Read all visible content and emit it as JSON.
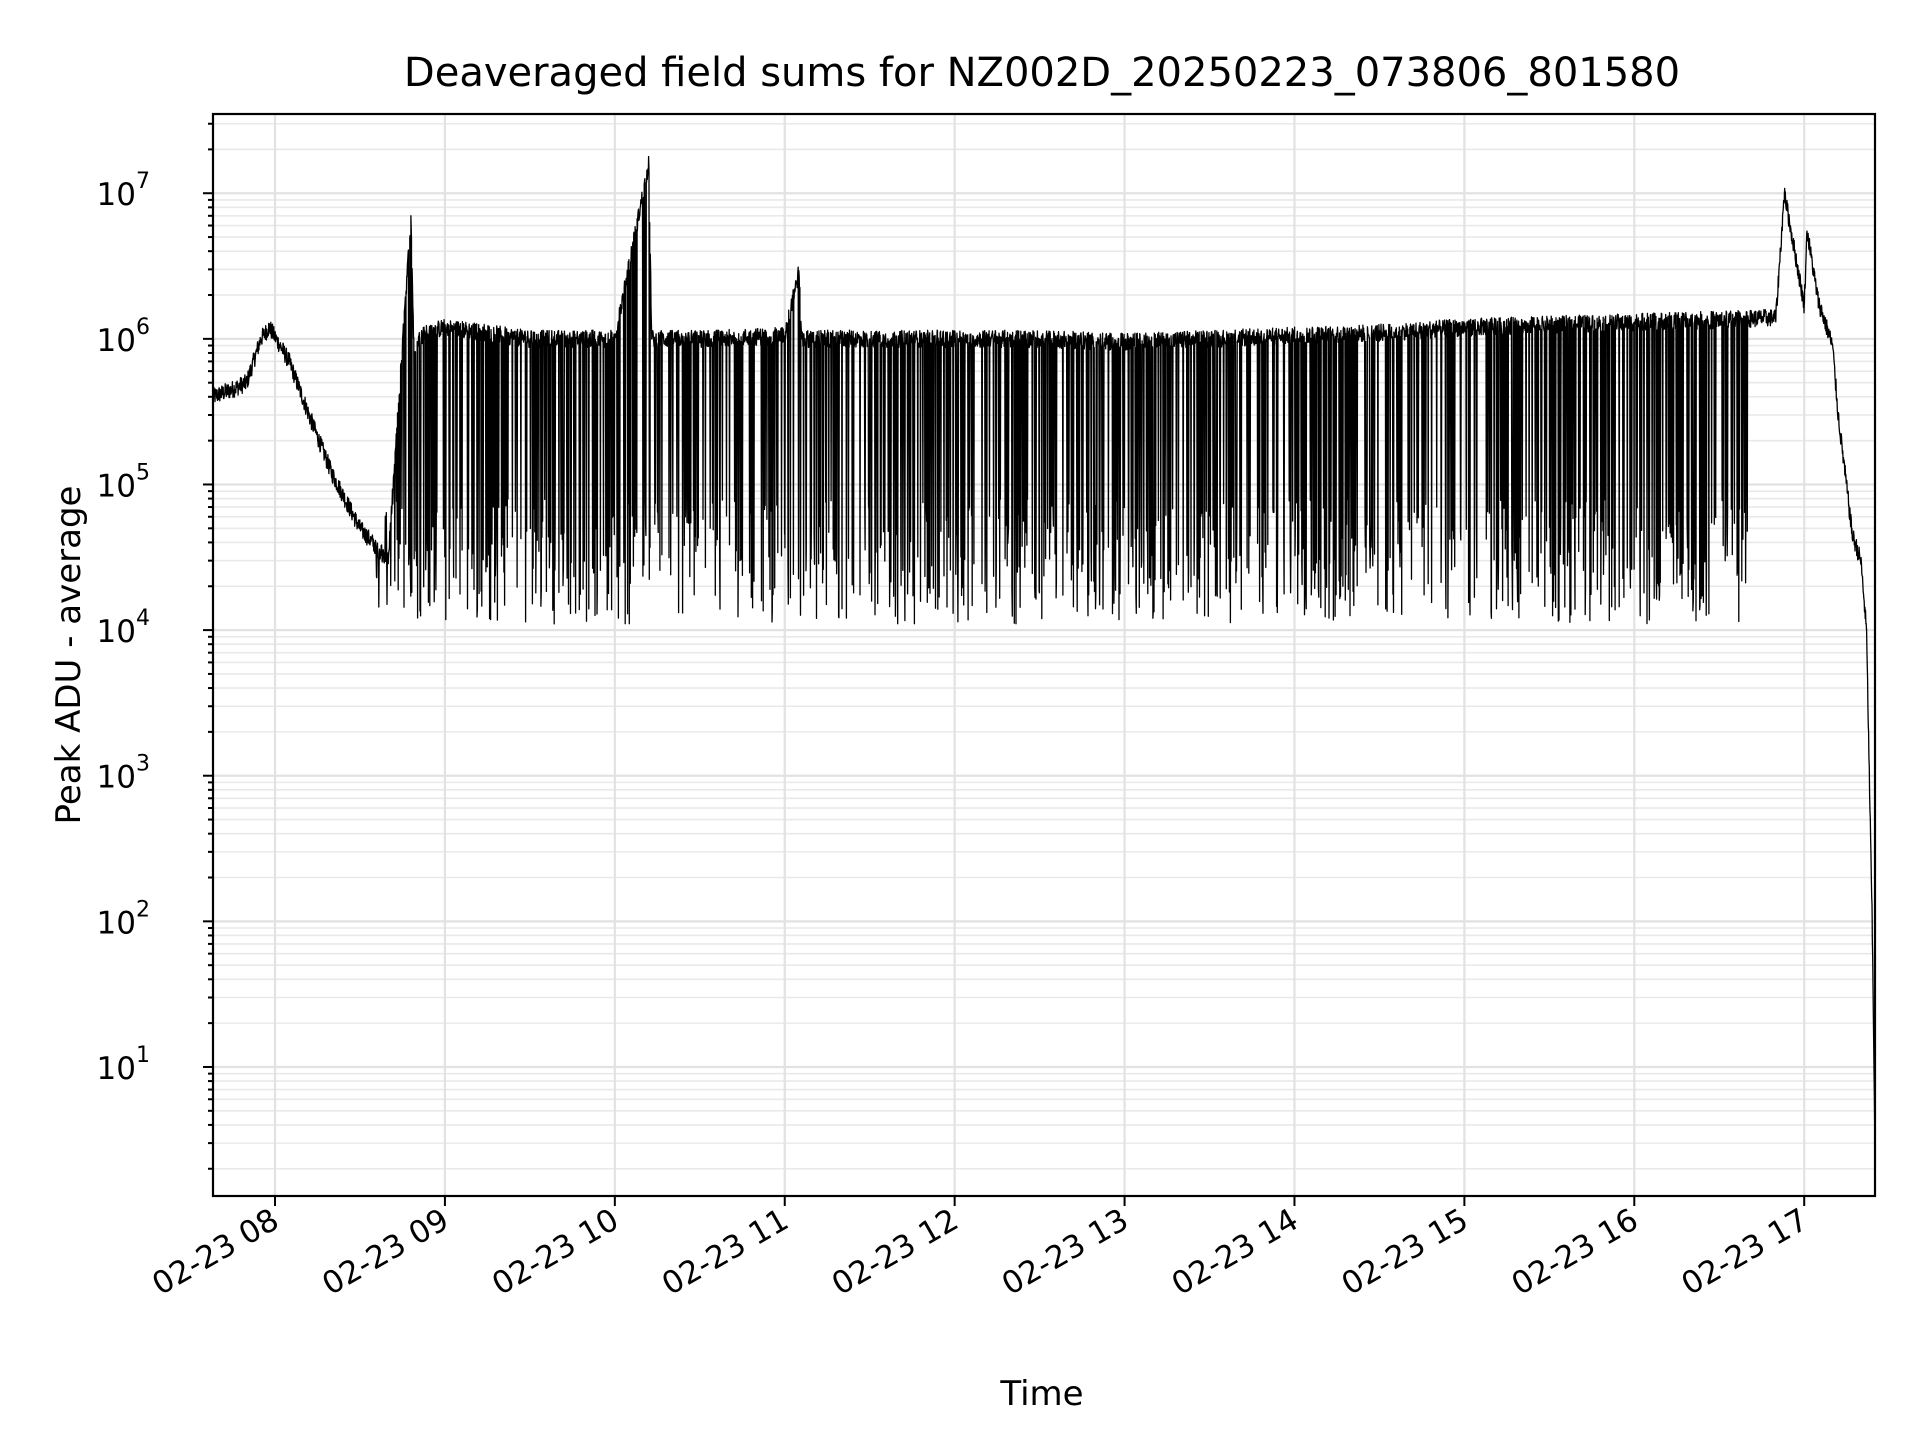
{
  "chart_data": {
    "type": "line",
    "title": "Deaveraged field sums for NZ002D_20250223_073806_801580",
    "xlabel": "Time",
    "ylabel": "Peak ADU - average",
    "yscale": "log",
    "ylim": [
      1.3,
      35000000
    ],
    "xlim": [
      "2025-02-23 07:38:06",
      "2025-02-23 17:25:00"
    ],
    "grid": true,
    "legend": "none",
    "x_ticks": [
      "02-23 08",
      "02-23 09",
      "02-23 10",
      "02-23 11",
      "02-23 12",
      "02-23 13",
      "02-23 14",
      "02-23 15",
      "02-23 16",
      "02-23 17"
    ],
    "x_tick_times": [
      "2025-02-23 08:00",
      "2025-02-23 09:00",
      "2025-02-23 10:00",
      "2025-02-23 11:00",
      "2025-02-23 12:00",
      "2025-02-23 13:00",
      "2025-02-23 14:00",
      "2025-02-23 15:00",
      "2025-02-23 16:00",
      "2025-02-23 17:00"
    ],
    "y_ticks": [
      {
        "base": "10",
        "exp": "1",
        "value": 10
      },
      {
        "base": "10",
        "exp": "2",
        "value": 100
      },
      {
        "base": "10",
        "exp": "3",
        "value": 1000
      },
      {
        "base": "10",
        "exp": "4",
        "value": 10000
      },
      {
        "base": "10",
        "exp": "5",
        "value": 100000
      },
      {
        "base": "10",
        "exp": "6",
        "value": 1000000
      },
      {
        "base": "10",
        "exp": "7",
        "value": 10000000
      }
    ],
    "line_color": "#000000",
    "series": [
      {
        "x": [
          "2025-02-23 07:38",
          "2025-02-23 07:45",
          "2025-02-23 07:50",
          "2025-02-23 07:55",
          "2025-02-23 07:58",
          "2025-02-23 08:05",
          "2025-02-23 08:12",
          "2025-02-23 08:20",
          "2025-02-23 08:30",
          "2025-02-23 08:40",
          "2025-02-23 08:48",
          "2025-02-23 08:49",
          "2025-02-23 08:53",
          "2025-02-23 09:00",
          "2025-02-23 09:30",
          "2025-02-23 10:00",
          "2025-02-23 10:12",
          "2025-02-23 10:13",
          "2025-02-23 10:30",
          "2025-02-23 11:00",
          "2025-02-23 11:05",
          "2025-02-23 11:06",
          "2025-02-23 11:30",
          "2025-02-23 12:00",
          "2025-02-23 12:30",
          "2025-02-23 13:00",
          "2025-02-23 13:30",
          "2025-02-23 14:00",
          "2025-02-23 14:30",
          "2025-02-23 15:00",
          "2025-02-23 15:30",
          "2025-02-23 16:00",
          "2025-02-23 16:30",
          "2025-02-23 16:50",
          "2025-02-23 16:53",
          "2025-02-23 17:00",
          "2025-02-23 17:01",
          "2025-02-23 17:05",
          "2025-02-23 17:10",
          "2025-02-23 17:12",
          "2025-02-23 17:17",
          "2025-02-23 17:20",
          "2025-02-23 17:22",
          "2025-02-23 17:24",
          "2025-02-23 17:25"
        ],
        "values": [
          400000,
          450000,
          500000,
          1000000,
          1200000,
          700000,
          300000,
          120000,
          50000,
          30000,
          7000000,
          900000,
          1100000,
          1200000,
          1000000,
          1000000,
          16000000,
          1000000,
          1000000,
          1050000,
          2900000,
          1000000,
          1000000,
          1000000,
          1000000,
          950000,
          1000000,
          1050000,
          1100000,
          1200000,
          1250000,
          1300000,
          1350000,
          1400000,
          10000000,
          1700000,
          5500000,
          1800000,
          900000,
          300000,
          45000,
          30000,
          10000,
          100,
          3
        ],
        "dips": {
          "typical_min": 20000,
          "deepest_min": 11000,
          "span": [
            "2025-02-23 08:35",
            "2025-02-23 16:40"
          ]
        }
      }
    ]
  }
}
